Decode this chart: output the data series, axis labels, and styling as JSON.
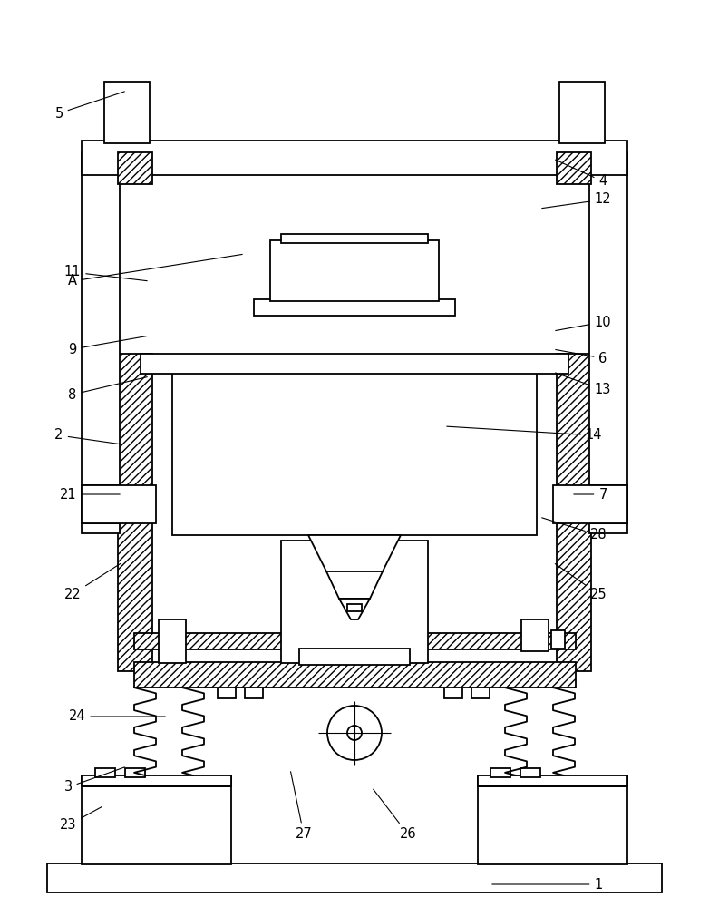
{
  "bg_color": "#ffffff",
  "line_color": "#000000",
  "fig_width": 7.82,
  "fig_height": 10.0,
  "labels_data": [
    [
      "1",
      660,
      975,
      540,
      975
    ],
    [
      "2",
      65,
      480,
      135,
      490
    ],
    [
      "3",
      75,
      868,
      140,
      845
    ],
    [
      "4",
      665,
      200,
      610,
      175
    ],
    [
      "5",
      65,
      125,
      140,
      100
    ],
    [
      "6",
      665,
      395,
      610,
      385
    ],
    [
      "7",
      665,
      545,
      630,
      545
    ],
    [
      "8",
      80,
      435,
      165,
      415
    ],
    [
      "9",
      80,
      385,
      165,
      370
    ],
    [
      "10",
      665,
      355,
      610,
      365
    ],
    [
      "11",
      80,
      300,
      165,
      310
    ],
    [
      "12",
      665,
      220,
      595,
      230
    ],
    [
      "13",
      665,
      430,
      610,
      410
    ],
    [
      "14",
      655,
      480,
      490,
      470
    ],
    [
      "21",
      75,
      545,
      135,
      545
    ],
    [
      "22",
      80,
      655,
      135,
      620
    ],
    [
      "23",
      75,
      910,
      115,
      888
    ],
    [
      "24",
      85,
      790,
      185,
      790
    ],
    [
      "25",
      660,
      655,
      610,
      620
    ],
    [
      "26",
      450,
      920,
      410,
      868
    ],
    [
      "27",
      335,
      920,
      320,
      848
    ],
    [
      "28",
      660,
      590,
      595,
      570
    ],
    [
      "A",
      80,
      310,
      270,
      280
    ]
  ]
}
